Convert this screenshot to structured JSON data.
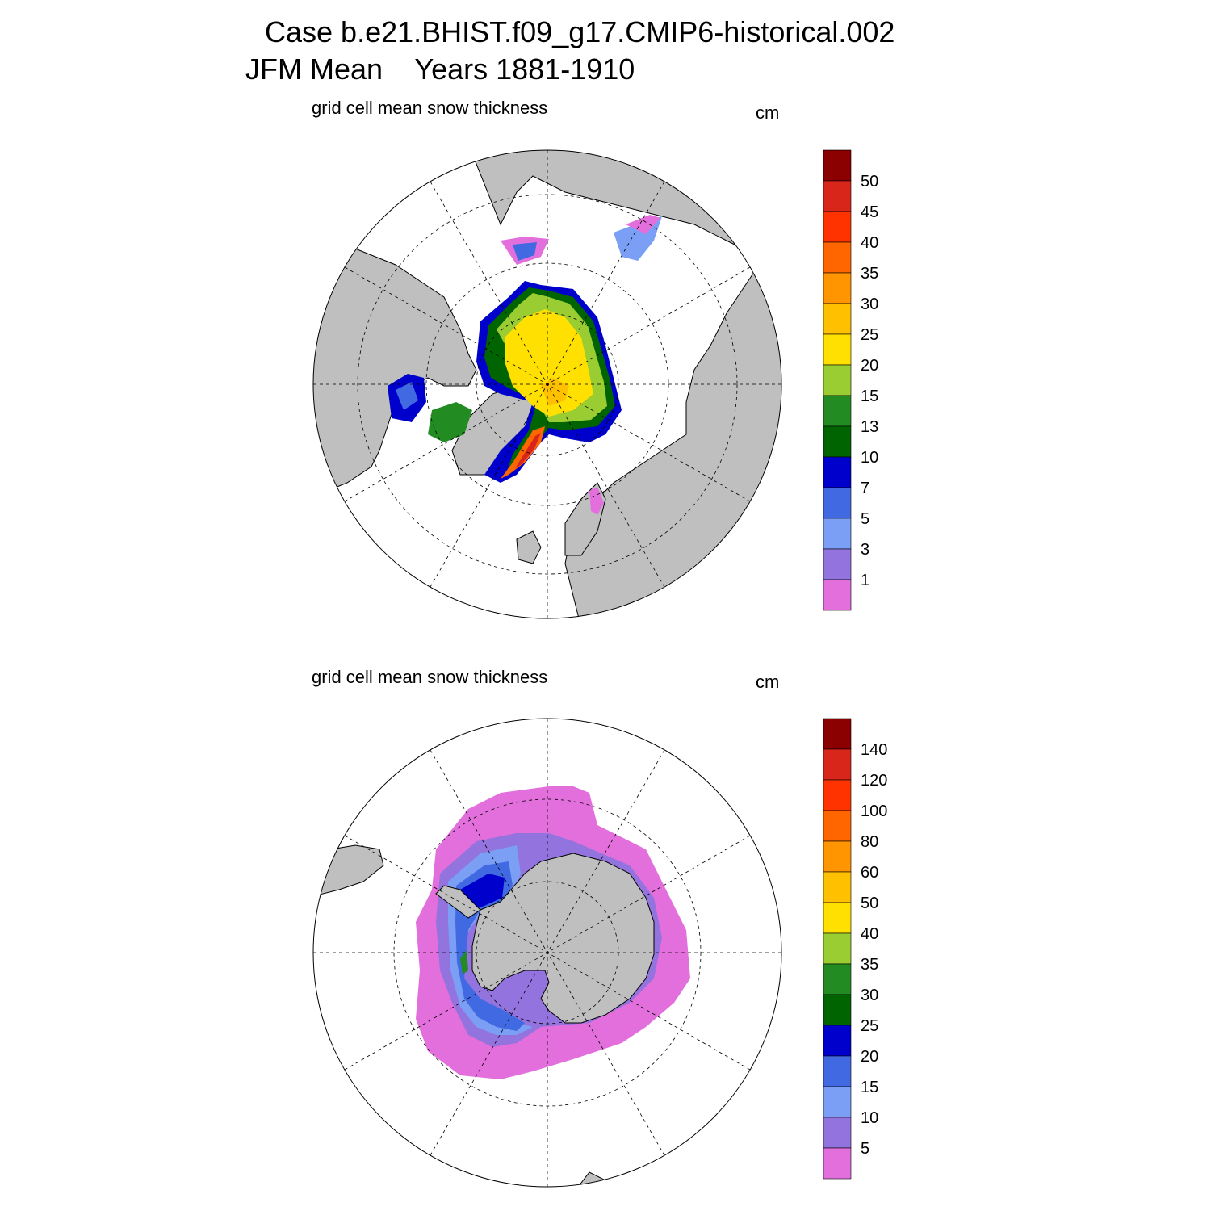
{
  "header": {
    "case_title": "Case b.e21.BHIST.f09_g17.CMIP6-historical.002",
    "period_line": "JFM Mean    Years 1881-1910"
  },
  "panels": [
    {
      "id": "north",
      "hemisphere": "Northern Hemisphere (polar stereographic)",
      "subtitle": "grid cell mean snow thickness",
      "units": "cm",
      "legend_labels": [
        "1",
        "3",
        "5",
        "7",
        "10",
        "13",
        "15",
        "20",
        "25",
        "30",
        "35",
        "40",
        "45",
        "50"
      ]
    },
    {
      "id": "south",
      "hemisphere": "Southern Hemisphere (polar stereographic)",
      "subtitle": "grid cell mean snow thickness",
      "units": "cm",
      "legend_labels": [
        "5",
        "10",
        "15",
        "20",
        "25",
        "30",
        "35",
        "40",
        "50",
        "60",
        "80",
        "100",
        "120",
        "140"
      ]
    }
  ],
  "colors": {
    "land": "#bfbfbf",
    "ocean": "#ffffff",
    "palette": [
      "#e26fdb",
      "#9373dd",
      "#7a9ff5",
      "#4169e1",
      "#0000cd",
      "#006400",
      "#228b22",
      "#9acd32",
      "#ffe000",
      "#ffc000",
      "#ff9500",
      "#ff6600",
      "#ff3300",
      "#d9261a",
      "#8b0000"
    ]
  }
}
